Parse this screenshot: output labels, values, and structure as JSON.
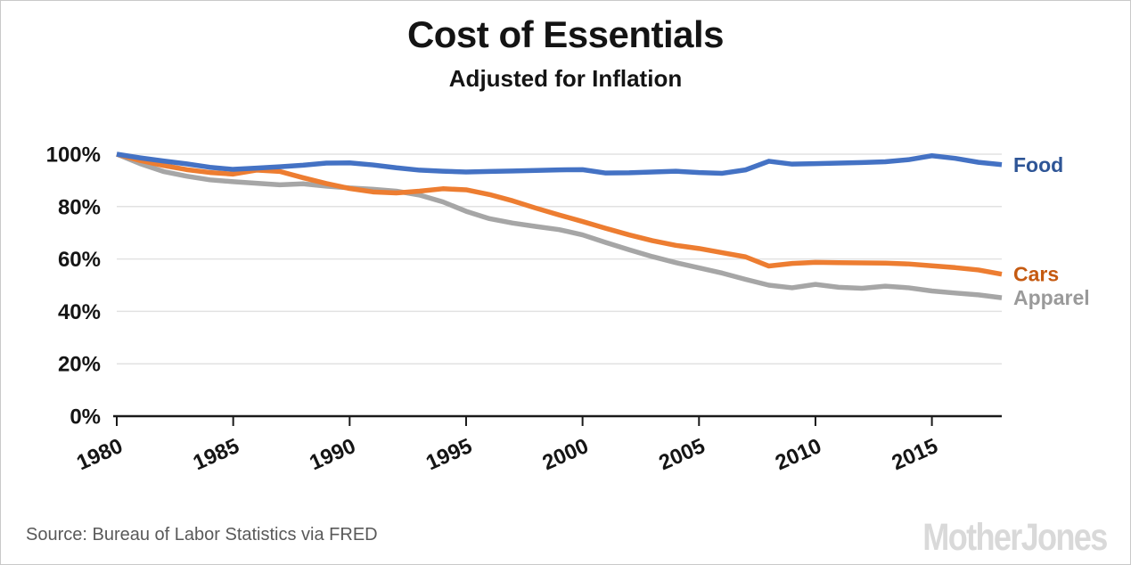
{
  "header": {
    "title": "Cost of Essentials",
    "subtitle": "Adjusted for Inflation"
  },
  "footer": {
    "source": "Source: Bureau of Labor Statistics via FRED",
    "logo": "MotherJones"
  },
  "colors": {
    "gridline": "#e2e2e2",
    "axis": "#1a1a1a",
    "title_text": "#141414",
    "source_text": "#595959",
    "logo_text": "#d9d9d9",
    "food_line": "#4472c4",
    "cars_line": "#ed7d31",
    "apparel_line": "#a6a6a6"
  },
  "chart_data": {
    "type": "line",
    "title": "Cost of Essentials",
    "subtitle": "Adjusted for Inflation",
    "xlabel": "",
    "ylabel": "",
    "ylim": [
      0,
      100
    ],
    "y_ticks": [
      0,
      20,
      40,
      60,
      80,
      100
    ],
    "y_tick_suffix": "%",
    "x_ticks": [
      1980,
      1985,
      1990,
      1995,
      2000,
      2005,
      2010,
      2015
    ],
    "grid": true,
    "legend_position": "right-of-line-ends",
    "x": [
      1980,
      1981,
      1982,
      1983,
      1984,
      1985,
      1986,
      1987,
      1988,
      1989,
      1990,
      1991,
      1992,
      1993,
      1994,
      1995,
      1996,
      1997,
      1998,
      1999,
      2000,
      2001,
      2002,
      2003,
      2004,
      2005,
      2006,
      2007,
      2008,
      2009,
      2010,
      2011,
      2012,
      2013,
      2014,
      2015,
      2016,
      2017,
      2018
    ],
    "series": [
      {
        "name": "Food",
        "color": "#4472c4",
        "label_color": "#2e5596",
        "values": [
          100,
          98.6,
          97.4,
          96.3,
          95.0,
          94.2,
          94.7,
          95.2,
          95.8,
          96.6,
          96.7,
          95.9,
          94.8,
          93.9,
          93.5,
          93.2,
          93.4,
          93.6,
          93.8,
          94.0,
          94.1,
          92.8,
          92.9,
          93.2,
          93.5,
          93.0,
          92.7,
          94.0,
          97.3,
          96.2,
          96.4,
          96.6,
          96.8,
          97.1,
          97.9,
          99.4,
          98.4,
          96.9,
          96.0
        ]
      },
      {
        "name": "Cars",
        "color": "#ed7d31",
        "label_color": "#c55a11",
        "values": [
          100,
          97.6,
          95.7,
          94.1,
          93.0,
          92.4,
          93.9,
          93.4,
          91.0,
          88.8,
          86.9,
          85.6,
          85.2,
          85.9,
          86.8,
          86.4,
          84.6,
          82.2,
          79.4,
          76.8,
          74.3,
          71.7,
          69.2,
          67.0,
          65.2,
          64.0,
          62.4,
          60.8,
          57.3,
          58.3,
          58.7,
          58.6,
          58.5,
          58.4,
          58.1,
          57.4,
          56.7,
          55.8,
          54.2
        ]
      },
      {
        "name": "Apparel",
        "color": "#a6a6a6",
        "label_color": "#9a9a9a",
        "values": [
          100,
          96.4,
          93.4,
          91.6,
          90.2,
          89.5,
          88.9,
          88.3,
          88.7,
          87.8,
          87.1,
          86.6,
          85.9,
          84.4,
          81.8,
          78.2,
          75.4,
          73.7,
          72.4,
          71.2,
          69.2,
          66.3,
          63.5,
          60.9,
          58.6,
          56.6,
          54.6,
          52.2,
          50.0,
          49.0,
          50.3,
          49.2,
          48.8,
          49.6,
          49.0,
          47.8,
          47.0,
          46.3,
          45.2
        ]
      }
    ]
  }
}
